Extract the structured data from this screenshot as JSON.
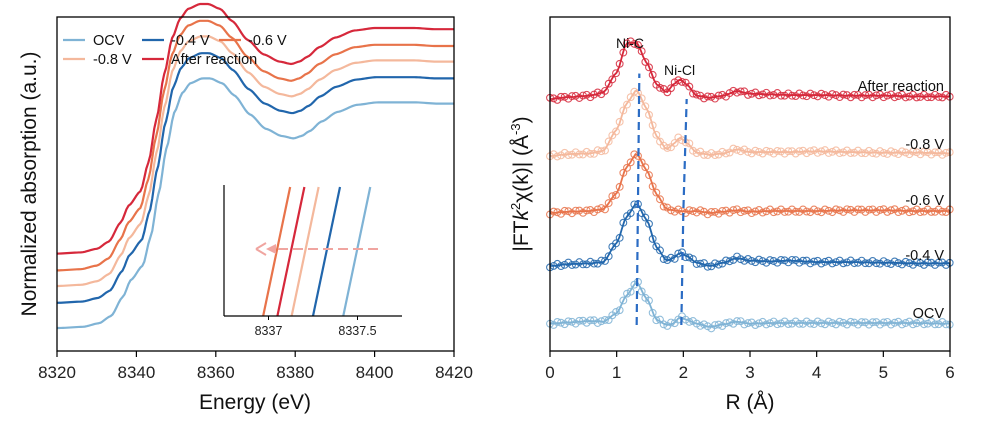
{
  "colors": {
    "OCV": "#7fb3d5",
    "-0.4 V": "#2166ac",
    "-0.6 V": "#e8734a",
    "-0.8 V": "#f4b89c",
    "After reaction": "#d6283b",
    "guide": "#2b6cc4",
    "arrow": "#f0a5a0"
  },
  "chart_data": [
    {
      "id": "xanes",
      "type": "line",
      "title": "",
      "xlabel": "Energy (eV)",
      "ylabel": "Normalized absorption (a.u.)",
      "xlim": [
        8320,
        8420
      ],
      "xticks": [
        "8320",
        "8340",
        "8360",
        "8380",
        "8400",
        "8420"
      ],
      "xtick_values": [
        8320,
        8340,
        8360,
        8380,
        8400,
        8420
      ],
      "yticks": "none",
      "legend_position": "top-left",
      "legend": [
        {
          "label": "OCV",
          "series": "OCV"
        },
        {
          "label": "-0.4 V",
          "series": "-0.4 V"
        },
        {
          "label": "-0.6 V",
          "series": "-0.6 V"
        },
        {
          "label": "-0.8 V",
          "series": "-0.8 V"
        },
        {
          "label": "After reaction",
          "series": "After reaction"
        }
      ],
      "base_profile": {
        "x": [
          8320,
          8326,
          8330,
          8333,
          8336,
          8338,
          8341,
          8343,
          8345,
          8347,
          8349,
          8351,
          8353,
          8356,
          8358,
          8361,
          8364,
          8368,
          8372,
          8376,
          8379,
          8381,
          8383,
          8386,
          8390,
          8395,
          8400,
          8405,
          8410,
          8415,
          8420
        ],
        "y": [
          0.0,
          0.005,
          0.02,
          0.05,
          0.13,
          0.2,
          0.26,
          0.38,
          0.56,
          0.75,
          0.9,
          0.98,
          1.02,
          1.04,
          1.04,
          1.02,
          0.97,
          0.89,
          0.83,
          0.8,
          0.79,
          0.8,
          0.82,
          0.86,
          0.9,
          0.93,
          0.94,
          0.94,
          0.94,
          0.935,
          0.935
        ]
      },
      "series": [
        {
          "name": "OCV",
          "offset": 0.0,
          "edge_shift_eV": 0.6
        },
        {
          "name": "-0.4 V",
          "offset": 0.105,
          "edge_shift_eV": 0.3
        },
        {
          "name": "-0.8 V",
          "offset": 0.175,
          "edge_shift_eV": 0.15
        },
        {
          "name": "-0.6 V",
          "offset": 0.24,
          "edge_shift_eV": 0.0
        },
        {
          "name": "After reaction",
          "offset": 0.31,
          "edge_shift_eV": 0.05
        }
      ],
      "inset": {
        "xticks": [
          "8337",
          "8337.5"
        ],
        "xtick_values": [
          8337.0,
          8337.5
        ],
        "xlim": [
          8336.75,
          8337.75
        ],
        "lines": [
          {
            "series": "-0.6 V",
            "bottom_x": 8336.97
          },
          {
            "series": "After reaction",
            "bottom_x": 8337.05
          },
          {
            "series": "-0.8 V",
            "bottom_x": 8337.13
          },
          {
            "series": "-0.4 V",
            "bottom_x": 8337.25
          },
          {
            "series": "OCV",
            "bottom_x": 8337.42
          }
        ],
        "arrow": "right-to-left dashed arrow indicating edge shift to lower energy"
      }
    },
    {
      "id": "exafs",
      "type": "scatter",
      "title": "",
      "xlabel": "R (Å)",
      "ylabel_parts": [
        "|FT",
        "k",
        "2",
        "χ(k)| (Å",
        "-3",
        ")"
      ],
      "xlim": [
        0,
        6
      ],
      "xticks": [
        "0",
        "1",
        "2",
        "3",
        "4",
        "5",
        "6"
      ],
      "xtick_values": [
        0,
        1,
        2,
        3,
        4,
        5,
        6
      ],
      "yticks": "none",
      "peaks": [
        {
          "label": "Ni-C",
          "R": 1.3
        },
        {
          "label": "Ni-Cl",
          "R": 1.95
        }
      ],
      "guide_lines": [
        {
          "name": "Ni-C",
          "points": [
            [
              1.3,
              0.0
            ],
            [
              1.34,
              4.45
            ]
          ]
        },
        {
          "name": "Ni-Cl",
          "points": [
            [
              1.97,
              0.0
            ],
            [
              2.0,
              2.0
            ],
            [
              2.05,
              4.0
            ]
          ]
        }
      ],
      "profile_R": [
        0.0,
        0.3,
        0.6,
        0.8,
        1.0,
        1.15,
        1.3,
        1.45,
        1.6,
        1.75,
        1.85,
        1.95,
        2.05,
        2.2,
        2.4,
        2.6,
        2.8,
        3.0,
        3.3,
        3.6,
        4.0,
        4.5,
        5.0,
        5.5,
        6.0
      ],
      "series": [
        {
          "name": "OCV",
          "baseline": 0.0,
          "label": "OCV",
          "y": [
            0.02,
            0.04,
            0.06,
            0.05,
            0.18,
            0.45,
            0.65,
            0.4,
            0.08,
            0.0,
            0.02,
            0.12,
            0.08,
            0.02,
            -0.03,
            0.01,
            0.05,
            0.02,
            0.03,
            0.03,
            0.03,
            0.03,
            0.03,
            0.03,
            0.02
          ]
        },
        {
          "name": "-0.4 V",
          "baseline": 1.0,
          "label": "-0.4 V",
          "y": [
            0.0,
            0.03,
            0.04,
            0.06,
            0.35,
            0.75,
            0.95,
            0.7,
            0.28,
            0.08,
            0.12,
            0.2,
            0.15,
            0.05,
            0.0,
            0.05,
            0.12,
            0.08,
            0.07,
            0.08,
            0.06,
            0.06,
            0.05,
            0.04,
            0.04
          ]
        },
        {
          "name": "-0.6 V",
          "baseline": 2.0,
          "label": "-0.6 V",
          "y": [
            0.0,
            0.02,
            0.03,
            0.06,
            0.3,
            0.7,
            0.9,
            0.65,
            0.28,
            0.06,
            0.04,
            0.03,
            0.02,
            0.03,
            0.0,
            0.02,
            0.04,
            0.02,
            0.03,
            0.03,
            0.03,
            0.04,
            0.04,
            0.03,
            0.03
          ]
        },
        {
          "name": "-0.8 V",
          "baseline": 3.0,
          "label": "-0.8 V",
          "y": [
            0.0,
            0.03,
            0.04,
            0.08,
            0.4,
            0.8,
            1.0,
            0.72,
            0.3,
            0.1,
            0.18,
            0.28,
            0.2,
            0.05,
            0.02,
            0.04,
            0.1,
            0.06,
            0.06,
            0.06,
            0.07,
            0.06,
            0.05,
            0.05,
            0.04
          ]
        },
        {
          "name": "After reaction",
          "baseline": 4.0,
          "label": "After reaction",
          "y": [
            0.0,
            0.03,
            0.05,
            0.1,
            0.4,
            0.85,
            0.85,
            0.55,
            0.22,
            0.1,
            0.22,
            0.3,
            0.22,
            0.05,
            0.02,
            0.05,
            0.12,
            0.08,
            0.07,
            0.06,
            0.06,
            0.05,
            0.05,
            0.04,
            0.04
          ]
        }
      ]
    }
  ]
}
